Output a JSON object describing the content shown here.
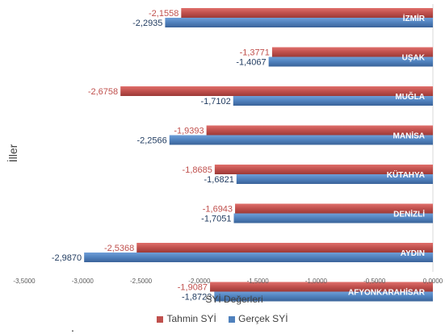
{
  "chart_data": {
    "type": "bar",
    "orientation": "horizontal",
    "ylabel": "İller",
    "xlabel": "SYİ Değerleri",
    "xlim": [
      -3.5,
      0
    ],
    "x_ticks": [
      "-3,5000",
      "-3,0000",
      "-2,5000",
      "-2,0000",
      "-1,5000",
      "-1,0000",
      "-0,5000",
      "0,0000"
    ],
    "categories": [
      "İZMİR",
      "UŞAK",
      "MUĞLA",
      "MANİSA",
      "KÜTAHYA",
      "DENİZLİ",
      "AYDIN",
      "AFYONKARAHİSAR"
    ],
    "series": [
      {
        "name": "Tahmin SYİ",
        "color": "#c0504d",
        "values": [
          -2.1558,
          -1.3771,
          -2.6758,
          -1.9393,
          -1.8685,
          -1.6943,
          -2.5368,
          -1.9087
        ],
        "labels": [
          "-2,1558",
          "-1,3771",
          "-2,6758",
          "-1,9393",
          "-1,8685",
          "-1,6943",
          "-2,5368",
          "-1,9087"
        ]
      },
      {
        "name": "Gerçek SYİ",
        "color": "#4f81bd",
        "values": [
          -2.2935,
          -1.4067,
          -1.7102,
          -2.2566,
          -1.6821,
          -1.7051,
          -2.987,
          -1.8723
        ],
        "labels": [
          "-2,2935",
          "-1,4067",
          "-1,7102",
          "-2,2566",
          "-1,6821",
          "-1,7051",
          "-2,9870",
          "-1,8723"
        ]
      }
    ],
    "legend_position": "bottom",
    "grid": false
  },
  "footnote": "."
}
